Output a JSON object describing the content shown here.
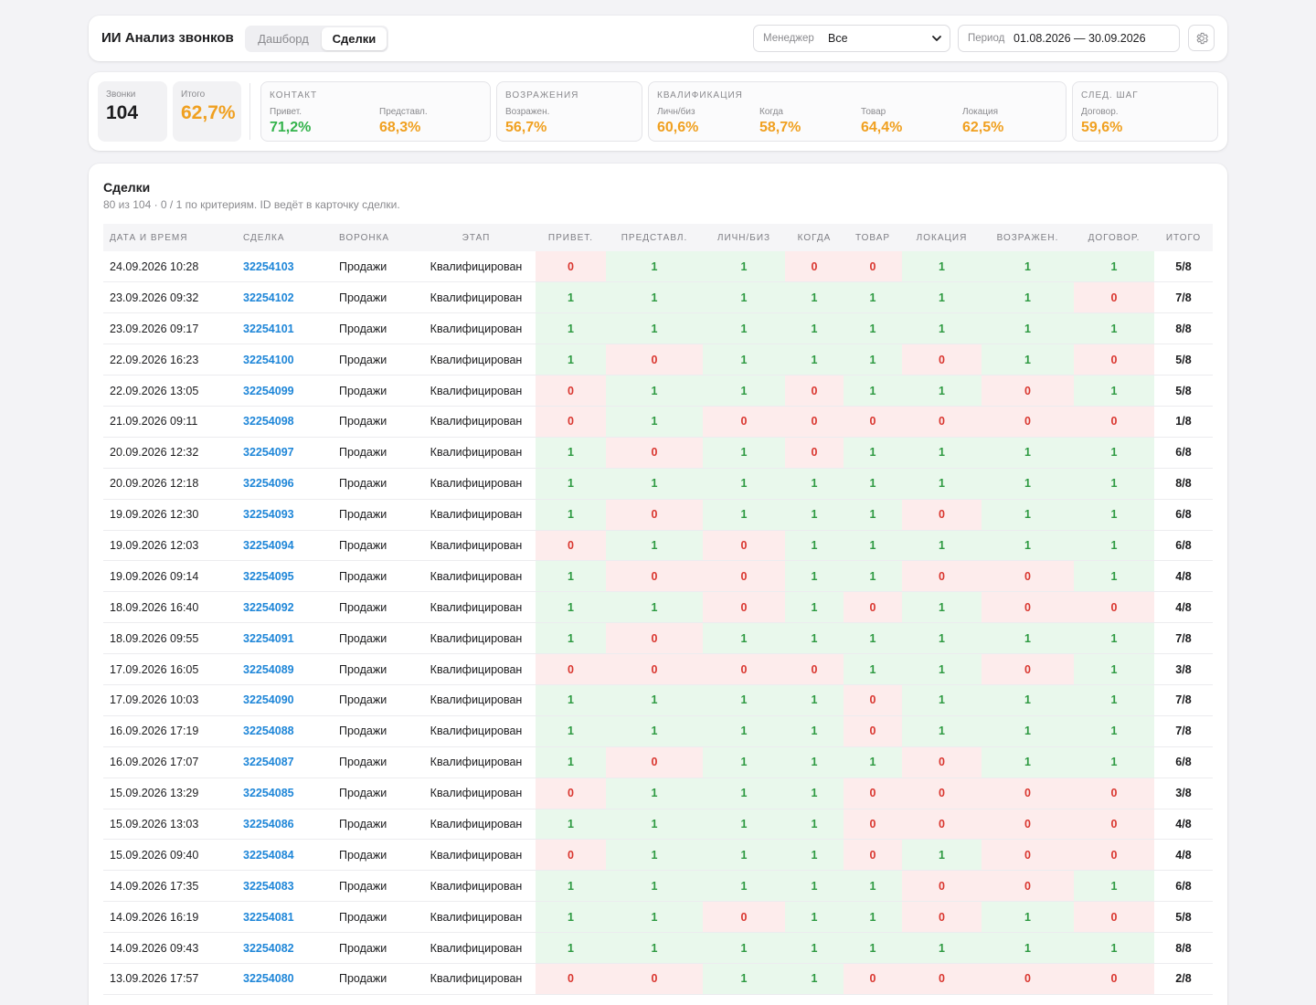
{
  "header": {
    "title": "ИИ Анализ звонков",
    "tabs": [
      {
        "label": "Дашборд",
        "active": false
      },
      {
        "label": "Сделки",
        "active": true
      }
    ],
    "manager_label": "Менеджер",
    "manager_value": "Все",
    "period_label": "Период",
    "period_value": "01.08.2026 — 30.09.2026",
    "settings_icon": "gear-icon"
  },
  "stats": {
    "calls": {
      "label": "Звонки",
      "value": "104"
    },
    "total": {
      "label": "Итого",
      "value": "62,7%"
    },
    "groups": [
      {
        "title": "КОНТАКТ",
        "metrics": [
          {
            "label": "Привет.",
            "value": "71,2%",
            "tone": "green"
          },
          {
            "label": "Представл.",
            "value": "68,3%",
            "tone": "amber"
          }
        ]
      },
      {
        "title": "ВОЗРАЖЕНИЯ",
        "metrics": [
          {
            "label": "Возражен.",
            "value": "56,7%",
            "tone": "amber"
          }
        ]
      },
      {
        "title": "КВАЛИФИКАЦИЯ",
        "metrics": [
          {
            "label": "Личн/биз",
            "value": "60,6%",
            "tone": "amber"
          },
          {
            "label": "Когда",
            "value": "58,7%",
            "tone": "amber"
          },
          {
            "label": "Товар",
            "value": "64,4%",
            "tone": "amber"
          },
          {
            "label": "Локация",
            "value": "62,5%",
            "tone": "amber"
          }
        ]
      },
      {
        "title": "СЛЕД. ШАГ",
        "metrics": [
          {
            "label": "Договор.",
            "value": "59,6%",
            "tone": "amber"
          }
        ]
      }
    ]
  },
  "deals": {
    "title": "Сделки",
    "subtitle": "80 из 104 · 0 / 1 по критериям. ID ведёт в карточку сделки.",
    "columns": [
      "ДАТА И ВРЕМЯ",
      "СДЕЛКА",
      "ВОРОНКА",
      "ЭТАП",
      "ПРИВЕТ.",
      "ПРЕДСТАВЛ.",
      "ЛИЧН/БИЗ",
      "КОГДА",
      "ТОВАР",
      "ЛОКАЦИЯ",
      "ВОЗРАЖЕН.",
      "ДОГОВОР.",
      "ИТОГО"
    ],
    "rows": [
      {
        "date": "24.09.2026 10:28",
        "id": "32254103",
        "funnel": "Продажи",
        "stage": "Квалифицирован",
        "scores": [
          "0",
          "1",
          "1",
          "0",
          "0",
          "1",
          "1",
          "1"
        ],
        "total": "5/8"
      },
      {
        "date": "23.09.2026 09:32",
        "id": "32254102",
        "funnel": "Продажи",
        "stage": "Квалифицирован",
        "scores": [
          "1",
          "1",
          "1",
          "1",
          "1",
          "1",
          "1",
          "0"
        ],
        "total": "7/8"
      },
      {
        "date": "23.09.2026 09:17",
        "id": "32254101",
        "funnel": "Продажи",
        "stage": "Квалифицирован",
        "scores": [
          "1",
          "1",
          "1",
          "1",
          "1",
          "1",
          "1",
          "1"
        ],
        "total": "8/8"
      },
      {
        "date": "22.09.2026 16:23",
        "id": "32254100",
        "funnel": "Продажи",
        "stage": "Квалифицирован",
        "scores": [
          "1",
          "0",
          "1",
          "1",
          "1",
          "0",
          "1",
          "0"
        ],
        "total": "5/8"
      },
      {
        "date": "22.09.2026 13:05",
        "id": "32254099",
        "funnel": "Продажи",
        "stage": "Квалифицирован",
        "scores": [
          "0",
          "1",
          "1",
          "0",
          "1",
          "1",
          "0",
          "1"
        ],
        "total": "5/8"
      },
      {
        "date": "21.09.2026 09:11",
        "id": "32254098",
        "funnel": "Продажи",
        "stage": "Квалифицирован",
        "scores": [
          "0",
          "1",
          "0",
          "0",
          "0",
          "0",
          "0",
          "0"
        ],
        "total": "1/8"
      },
      {
        "date": "20.09.2026 12:32",
        "id": "32254097",
        "funnel": "Продажи",
        "stage": "Квалифицирован",
        "scores": [
          "1",
          "0",
          "1",
          "0",
          "1",
          "1",
          "1",
          "1"
        ],
        "total": "6/8"
      },
      {
        "date": "20.09.2026 12:18",
        "id": "32254096",
        "funnel": "Продажи",
        "stage": "Квалифицирован",
        "scores": [
          "1",
          "1",
          "1",
          "1",
          "1",
          "1",
          "1",
          "1"
        ],
        "total": "8/8"
      },
      {
        "date": "19.09.2026 12:30",
        "id": "32254093",
        "funnel": "Продажи",
        "stage": "Квалифицирован",
        "scores": [
          "1",
          "0",
          "1",
          "1",
          "1",
          "0",
          "1",
          "1"
        ],
        "total": "6/8"
      },
      {
        "date": "19.09.2026 12:03",
        "id": "32254094",
        "funnel": "Продажи",
        "stage": "Квалифицирован",
        "scores": [
          "0",
          "1",
          "0",
          "1",
          "1",
          "1",
          "1",
          "1"
        ],
        "total": "6/8"
      },
      {
        "date": "19.09.2026 09:14",
        "id": "32254095",
        "funnel": "Продажи",
        "stage": "Квалифицирован",
        "scores": [
          "1",
          "0",
          "0",
          "1",
          "1",
          "0",
          "0",
          "1"
        ],
        "total": "4/8"
      },
      {
        "date": "18.09.2026 16:40",
        "id": "32254092",
        "funnel": "Продажи",
        "stage": "Квалифицирован",
        "scores": [
          "1",
          "1",
          "0",
          "1",
          "0",
          "1",
          "0",
          "0"
        ],
        "total": "4/8"
      },
      {
        "date": "18.09.2026 09:55",
        "id": "32254091",
        "funnel": "Продажи",
        "stage": "Квалифицирован",
        "scores": [
          "1",
          "0",
          "1",
          "1",
          "1",
          "1",
          "1",
          "1"
        ],
        "total": "7/8"
      },
      {
        "date": "17.09.2026 16:05",
        "id": "32254089",
        "funnel": "Продажи",
        "stage": "Квалифицирован",
        "scores": [
          "0",
          "0",
          "0",
          "0",
          "1",
          "1",
          "0",
          "1"
        ],
        "total": "3/8"
      },
      {
        "date": "17.09.2026 10:03",
        "id": "32254090",
        "funnel": "Продажи",
        "stage": "Квалифицирован",
        "scores": [
          "1",
          "1",
          "1",
          "1",
          "0",
          "1",
          "1",
          "1"
        ],
        "total": "7/8"
      },
      {
        "date": "16.09.2026 17:19",
        "id": "32254088",
        "funnel": "Продажи",
        "stage": "Квалифицирован",
        "scores": [
          "1",
          "1",
          "1",
          "1",
          "0",
          "1",
          "1",
          "1"
        ],
        "total": "7/8"
      },
      {
        "date": "16.09.2026 17:07",
        "id": "32254087",
        "funnel": "Продажи",
        "stage": "Квалифицирован",
        "scores": [
          "1",
          "0",
          "1",
          "1",
          "1",
          "0",
          "1",
          "1"
        ],
        "total": "6/8"
      },
      {
        "date": "15.09.2026 13:29",
        "id": "32254085",
        "funnel": "Продажи",
        "stage": "Квалифицирован",
        "scores": [
          "0",
          "1",
          "1",
          "1",
          "0",
          "0",
          "0",
          "0"
        ],
        "total": "3/8"
      },
      {
        "date": "15.09.2026 13:03",
        "id": "32254086",
        "funnel": "Продажи",
        "stage": "Квалифицирован",
        "scores": [
          "1",
          "1",
          "1",
          "1",
          "0",
          "0",
          "0",
          "0"
        ],
        "total": "4/8"
      },
      {
        "date": "15.09.2026 09:40",
        "id": "32254084",
        "funnel": "Продажи",
        "stage": "Квалифицирован",
        "scores": [
          "0",
          "1",
          "1",
          "1",
          "0",
          "1",
          "0",
          "0"
        ],
        "total": "4/8"
      },
      {
        "date": "14.09.2026 17:35",
        "id": "32254083",
        "funnel": "Продажи",
        "stage": "Квалифицирован",
        "scores": [
          "1",
          "1",
          "1",
          "1",
          "1",
          "0",
          "0",
          "1"
        ],
        "total": "6/8"
      },
      {
        "date": "14.09.2026 16:19",
        "id": "32254081",
        "funnel": "Продажи",
        "stage": "Квалифицирован",
        "scores": [
          "1",
          "1",
          "0",
          "1",
          "1",
          "0",
          "1",
          "0"
        ],
        "total": "5/8"
      },
      {
        "date": "14.09.2026 09:43",
        "id": "32254082",
        "funnel": "Продажи",
        "stage": "Квалифицирован",
        "scores": [
          "1",
          "1",
          "1",
          "1",
          "1",
          "1",
          "1",
          "1"
        ],
        "total": "8/8"
      },
      {
        "date": "13.09.2026 17:57",
        "id": "32254080",
        "funnel": "Продажи",
        "stage": "Квалифицирован",
        "scores": [
          "0",
          "0",
          "1",
          "1",
          "0",
          "0",
          "0",
          "0"
        ],
        "total": "2/8"
      }
    ]
  },
  "colors": {
    "pass_bg": "#e9f8ec",
    "pass_text": "#2e9a42",
    "fail_bg": "#fdecec",
    "fail_text": "#d9362f",
    "link": "#1e86d8",
    "accent_green": "#34b34c",
    "accent_amber": "#f0a020"
  }
}
